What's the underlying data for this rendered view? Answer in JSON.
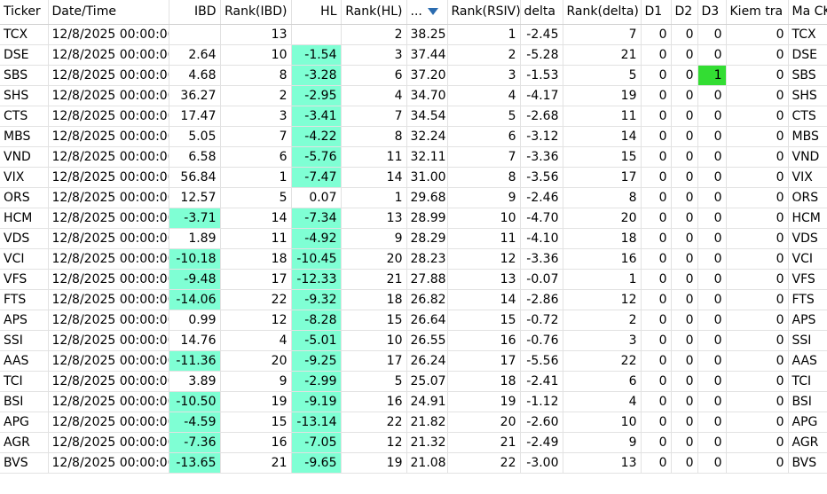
{
  "columns": [
    "Ticker",
    "Date/Time",
    "IBD",
    "Rank(IBD)",
    "HL",
    "Rank(HL)",
    "...",
    "Rank(RSIV)",
    "delta",
    "Rank(delta)",
    "D1",
    "D2",
    "D3",
    "Kiem tra",
    "Ma CK"
  ],
  "sort_icon": "sort-descending-icon",
  "highlight_color": "#7fffd4",
  "d3_highlight_color": "#33dd33",
  "rows": [
    {
      "ticker": "TCX",
      "datetime": "12/8/2025 00:00:00",
      "ibd": "",
      "rank_ibd": "13",
      "hl": "",
      "rank_hl": "2",
      "rsiv": "38.25",
      "rank_rsiv": "1",
      "delta": "-2.45",
      "rank_delta": "7",
      "d1": "0",
      "d2": "0",
      "d3": "0",
      "kiem_tra": "0",
      "ma_ck": "TCX",
      "ibd_hl": false,
      "hl_hl": false,
      "d3_hl": false
    },
    {
      "ticker": "DSE",
      "datetime": "12/8/2025 00:00:00",
      "ibd": "2.64",
      "rank_ibd": "10",
      "hl": "-1.54",
      "rank_hl": "3",
      "rsiv": "37.44",
      "rank_rsiv": "2",
      "delta": "-5.28",
      "rank_delta": "21",
      "d1": "0",
      "d2": "0",
      "d3": "0",
      "kiem_tra": "0",
      "ma_ck": "DSE",
      "ibd_hl": false,
      "hl_hl": true,
      "d3_hl": false
    },
    {
      "ticker": "SBS",
      "datetime": "12/8/2025 00:00:00",
      "ibd": "4.68",
      "rank_ibd": "8",
      "hl": "-3.28",
      "rank_hl": "6",
      "rsiv": "37.20",
      "rank_rsiv": "3",
      "delta": "-1.53",
      "rank_delta": "5",
      "d1": "0",
      "d2": "0",
      "d3": "1",
      "kiem_tra": "0",
      "ma_ck": "SBS",
      "ibd_hl": false,
      "hl_hl": true,
      "d3_hl": true
    },
    {
      "ticker": "SHS",
      "datetime": "12/8/2025 00:00:00",
      "ibd": "36.27",
      "rank_ibd": "2",
      "hl": "-2.95",
      "rank_hl": "4",
      "rsiv": "34.70",
      "rank_rsiv": "4",
      "delta": "-4.17",
      "rank_delta": "19",
      "d1": "0",
      "d2": "0",
      "d3": "0",
      "kiem_tra": "0",
      "ma_ck": "SHS",
      "ibd_hl": false,
      "hl_hl": true,
      "d3_hl": false
    },
    {
      "ticker": "CTS",
      "datetime": "12/8/2025 00:00:00",
      "ibd": "17.47",
      "rank_ibd": "3",
      "hl": "-3.41",
      "rank_hl": "7",
      "rsiv": "34.54",
      "rank_rsiv": "5",
      "delta": "-2.68",
      "rank_delta": "11",
      "d1": "0",
      "d2": "0",
      "d3": "0",
      "kiem_tra": "0",
      "ma_ck": "CTS",
      "ibd_hl": false,
      "hl_hl": true,
      "d3_hl": false
    },
    {
      "ticker": "MBS",
      "datetime": "12/8/2025 00:00:00",
      "ibd": "5.05",
      "rank_ibd": "7",
      "hl": "-4.22",
      "rank_hl": "8",
      "rsiv": "32.24",
      "rank_rsiv": "6",
      "delta": "-3.12",
      "rank_delta": "14",
      "d1": "0",
      "d2": "0",
      "d3": "0",
      "kiem_tra": "0",
      "ma_ck": "MBS",
      "ibd_hl": false,
      "hl_hl": true,
      "d3_hl": false
    },
    {
      "ticker": "VND",
      "datetime": "12/8/2025 00:00:00",
      "ibd": "6.58",
      "rank_ibd": "6",
      "hl": "-5.76",
      "rank_hl": "11",
      "rsiv": "32.11",
      "rank_rsiv": "7",
      "delta": "-3.36",
      "rank_delta": "15",
      "d1": "0",
      "d2": "0",
      "d3": "0",
      "kiem_tra": "0",
      "ma_ck": "VND",
      "ibd_hl": false,
      "hl_hl": true,
      "d3_hl": false
    },
    {
      "ticker": "VIX",
      "datetime": "12/8/2025 00:00:00",
      "ibd": "56.84",
      "rank_ibd": "1",
      "hl": "-7.47",
      "rank_hl": "14",
      "rsiv": "31.00",
      "rank_rsiv": "8",
      "delta": "-3.56",
      "rank_delta": "17",
      "d1": "0",
      "d2": "0",
      "d3": "0",
      "kiem_tra": "0",
      "ma_ck": "VIX",
      "ibd_hl": false,
      "hl_hl": true,
      "d3_hl": false
    },
    {
      "ticker": "ORS",
      "datetime": "12/8/2025 00:00:00",
      "ibd": "12.57",
      "rank_ibd": "5",
      "hl": "0.07",
      "rank_hl": "1",
      "rsiv": "29.68",
      "rank_rsiv": "9",
      "delta": "-2.46",
      "rank_delta": "8",
      "d1": "0",
      "d2": "0",
      "d3": "0",
      "kiem_tra": "0",
      "ma_ck": "ORS",
      "ibd_hl": false,
      "hl_hl": false,
      "d3_hl": false
    },
    {
      "ticker": "HCM",
      "datetime": "12/8/2025 00:00:00",
      "ibd": "-3.71",
      "rank_ibd": "14",
      "hl": "-7.34",
      "rank_hl": "13",
      "rsiv": "28.99",
      "rank_rsiv": "10",
      "delta": "-4.70",
      "rank_delta": "20",
      "d1": "0",
      "d2": "0",
      "d3": "0",
      "kiem_tra": "0",
      "ma_ck": "HCM",
      "ibd_hl": true,
      "hl_hl": true,
      "d3_hl": false
    },
    {
      "ticker": "VDS",
      "datetime": "12/8/2025 00:00:00",
      "ibd": "1.89",
      "rank_ibd": "11",
      "hl": "-4.92",
      "rank_hl": "9",
      "rsiv": "28.29",
      "rank_rsiv": "11",
      "delta": "-4.10",
      "rank_delta": "18",
      "d1": "0",
      "d2": "0",
      "d3": "0",
      "kiem_tra": "0",
      "ma_ck": "VDS",
      "ibd_hl": false,
      "hl_hl": true,
      "d3_hl": false
    },
    {
      "ticker": "VCI",
      "datetime": "12/8/2025 00:00:00",
      "ibd": "-10.18",
      "rank_ibd": "18",
      "hl": "-10.45",
      "rank_hl": "20",
      "rsiv": "28.23",
      "rank_rsiv": "12",
      "delta": "-3.36",
      "rank_delta": "16",
      "d1": "0",
      "d2": "0",
      "d3": "0",
      "kiem_tra": "0",
      "ma_ck": "VCI",
      "ibd_hl": true,
      "hl_hl": true,
      "d3_hl": false
    },
    {
      "ticker": "VFS",
      "datetime": "12/8/2025 00:00:00",
      "ibd": "-9.48",
      "rank_ibd": "17",
      "hl": "-12.33",
      "rank_hl": "21",
      "rsiv": "27.88",
      "rank_rsiv": "13",
      "delta": "-0.07",
      "rank_delta": "1",
      "d1": "0",
      "d2": "0",
      "d3": "0",
      "kiem_tra": "0",
      "ma_ck": "VFS",
      "ibd_hl": true,
      "hl_hl": true,
      "d3_hl": false
    },
    {
      "ticker": "FTS",
      "datetime": "12/8/2025 00:00:00",
      "ibd": "-14.06",
      "rank_ibd": "22",
      "hl": "-9.32",
      "rank_hl": "18",
      "rsiv": "26.82",
      "rank_rsiv": "14",
      "delta": "-2.86",
      "rank_delta": "12",
      "d1": "0",
      "d2": "0",
      "d3": "0",
      "kiem_tra": "0",
      "ma_ck": "FTS",
      "ibd_hl": true,
      "hl_hl": true,
      "d3_hl": false
    },
    {
      "ticker": "APS",
      "datetime": "12/8/2025 00:00:00",
      "ibd": "0.99",
      "rank_ibd": "12",
      "hl": "-8.28",
      "rank_hl": "15",
      "rsiv": "26.64",
      "rank_rsiv": "15",
      "delta": "-0.72",
      "rank_delta": "2",
      "d1": "0",
      "d2": "0",
      "d3": "0",
      "kiem_tra": "0",
      "ma_ck": "APS",
      "ibd_hl": false,
      "hl_hl": true,
      "d3_hl": false
    },
    {
      "ticker": "SSI",
      "datetime": "12/8/2025 00:00:00",
      "ibd": "14.76",
      "rank_ibd": "4",
      "hl": "-5.01",
      "rank_hl": "10",
      "rsiv": "26.55",
      "rank_rsiv": "16",
      "delta": "-0.76",
      "rank_delta": "3",
      "d1": "0",
      "d2": "0",
      "d3": "0",
      "kiem_tra": "0",
      "ma_ck": "SSI",
      "ibd_hl": false,
      "hl_hl": true,
      "d3_hl": false
    },
    {
      "ticker": "AAS",
      "datetime": "12/8/2025 00:00:00",
      "ibd": "-11.36",
      "rank_ibd": "20",
      "hl": "-9.25",
      "rank_hl": "17",
      "rsiv": "26.24",
      "rank_rsiv": "17",
      "delta": "-5.56",
      "rank_delta": "22",
      "d1": "0",
      "d2": "0",
      "d3": "0",
      "kiem_tra": "0",
      "ma_ck": "AAS",
      "ibd_hl": true,
      "hl_hl": true,
      "d3_hl": false
    },
    {
      "ticker": "TCI",
      "datetime": "12/8/2025 00:00:00",
      "ibd": "3.89",
      "rank_ibd": "9",
      "hl": "-2.99",
      "rank_hl": "5",
      "rsiv": "25.07",
      "rank_rsiv": "18",
      "delta": "-2.41",
      "rank_delta": "6",
      "d1": "0",
      "d2": "0",
      "d3": "0",
      "kiem_tra": "0",
      "ma_ck": "TCI",
      "ibd_hl": false,
      "hl_hl": true,
      "d3_hl": false
    },
    {
      "ticker": "BSI",
      "datetime": "12/8/2025 00:00:00",
      "ibd": "-10.50",
      "rank_ibd": "19",
      "hl": "-9.19",
      "rank_hl": "16",
      "rsiv": "24.91",
      "rank_rsiv": "19",
      "delta": "-1.12",
      "rank_delta": "4",
      "d1": "0",
      "d2": "0",
      "d3": "0",
      "kiem_tra": "0",
      "ma_ck": "BSI",
      "ibd_hl": true,
      "hl_hl": true,
      "d3_hl": false
    },
    {
      "ticker": "APG",
      "datetime": "12/8/2025 00:00:00",
      "ibd": "-4.59",
      "rank_ibd": "15",
      "hl": "-13.14",
      "rank_hl": "22",
      "rsiv": "21.82",
      "rank_rsiv": "20",
      "delta": "-2.60",
      "rank_delta": "10",
      "d1": "0",
      "d2": "0",
      "d3": "0",
      "kiem_tra": "0",
      "ma_ck": "APG",
      "ibd_hl": true,
      "hl_hl": true,
      "d3_hl": false
    },
    {
      "ticker": "AGR",
      "datetime": "12/8/2025 00:00:00",
      "ibd": "-7.36",
      "rank_ibd": "16",
      "hl": "-7.05",
      "rank_hl": "12",
      "rsiv": "21.32",
      "rank_rsiv": "21",
      "delta": "-2.49",
      "rank_delta": "9",
      "d1": "0",
      "d2": "0",
      "d3": "0",
      "kiem_tra": "0",
      "ma_ck": "AGR",
      "ibd_hl": true,
      "hl_hl": true,
      "d3_hl": false
    },
    {
      "ticker": "BVS",
      "datetime": "12/8/2025 00:00:00",
      "ibd": "-13.65",
      "rank_ibd": "21",
      "hl": "-9.65",
      "rank_hl": "19",
      "rsiv": "21.08",
      "rank_rsiv": "22",
      "delta": "-3.00",
      "rank_delta": "13",
      "d1": "0",
      "d2": "0",
      "d3": "0",
      "kiem_tra": "0",
      "ma_ck": "BVS",
      "ibd_hl": true,
      "hl_hl": true,
      "d3_hl": false
    }
  ]
}
